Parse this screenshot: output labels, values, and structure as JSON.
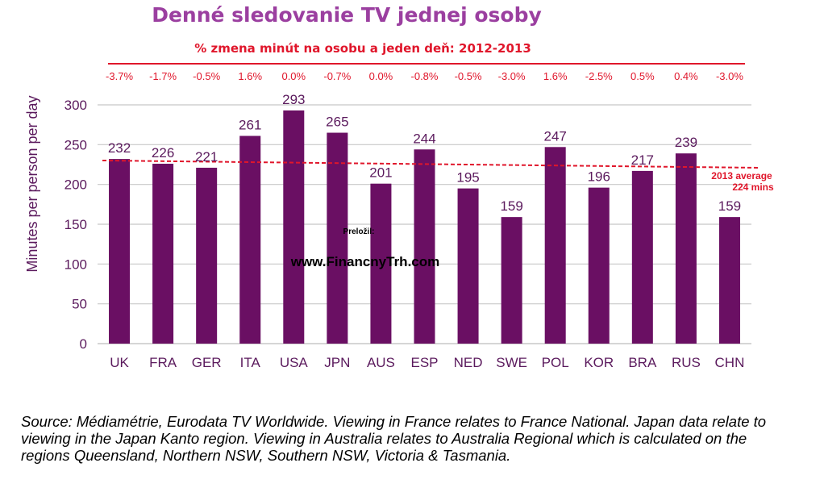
{
  "header": {
    "title": "Denné sledovanie TV jednej osoby",
    "subtitle": "% zmena minút na osobu a jeden deň: 2012-2013"
  },
  "watermark": {
    "label": "Preložil:",
    "url": "www.FinancnyTrh.com"
  },
  "source_note": "Source: Médiamétrie, Eurodata TV Worldwide. Viewing in France relates to France National. Japan data relate to viewing in the Japan Kanto region. Viewing in Australia relates to Australia Regional which is calculated on the regions Queensland, Northern NSW, Southern NSW, Victoria & Tasmania.",
  "chart_data": {
    "type": "bar",
    "title": "Denné sledovanie TV jednej osoby",
    "subtitle": "% zmena minút na osobu a jeden deň: 2012-2013",
    "xlabel": "",
    "ylabel": "Minutes per person per day",
    "ylim": [
      0,
      300
    ],
    "yticks": [
      0,
      50,
      100,
      150,
      200,
      250,
      300
    ],
    "grid": true,
    "categories": [
      "UK",
      "FRA",
      "GER",
      "ITA",
      "USA",
      "JPN",
      "AUS",
      "ESP",
      "NED",
      "SWE",
      "POL",
      "KOR",
      "BRA",
      "RUS",
      "CHN"
    ],
    "values": [
      232,
      226,
      221,
      261,
      293,
      265,
      201,
      244,
      195,
      159,
      247,
      196,
      217,
      239,
      159
    ],
    "pct_change": [
      "-3.7%",
      "-1.7%",
      "-0.5%",
      "1.6%",
      "0.0%",
      "-0.7%",
      "0.0%",
      "-0.8%",
      "-0.5%",
      "-3.0%",
      "1.6%",
      "-2.5%",
      "0.5%",
      "0.4%",
      "-3.0%"
    ],
    "average": {
      "value": 224,
      "label_line1": "2013 average",
      "label_line2": "224 mins"
    },
    "colors": {
      "bar": "#6a0f63",
      "text": "#5b1a5d",
      "pct": "#e0162b",
      "average": "#e0162b",
      "grid": "#c8c8c8"
    }
  }
}
